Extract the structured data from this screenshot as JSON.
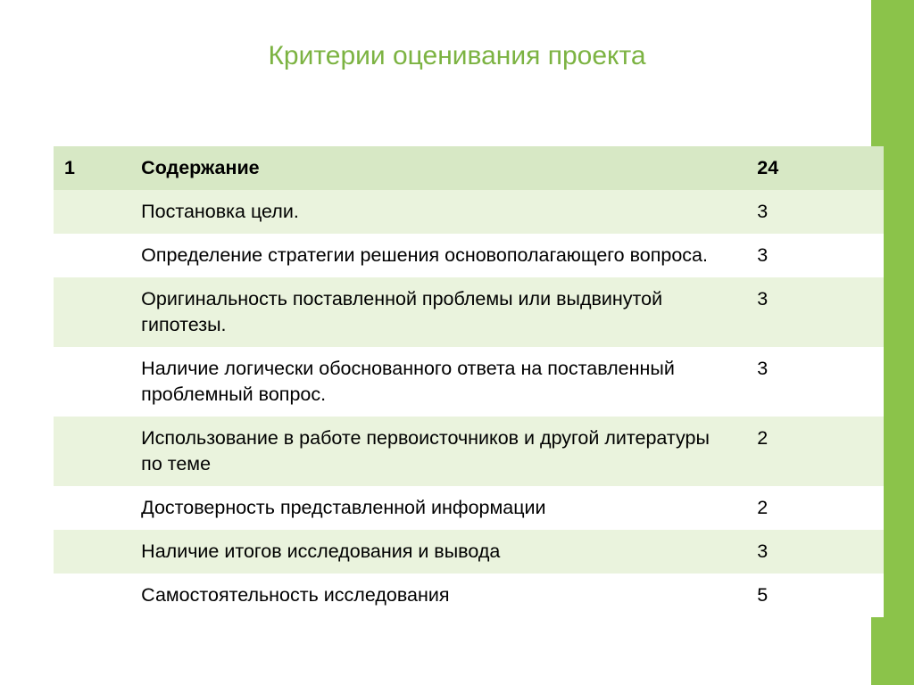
{
  "title": "Критерии оценивания проекта",
  "colors": {
    "accent": "#8bc34a",
    "title_text": "#7cb342",
    "row_header_bg": "#d7e8c5",
    "row_alt_bg": "#eaf3dd",
    "row_plain_bg": "#ffffff",
    "cell_text": "#000000"
  },
  "table": {
    "header": {
      "num": "1",
      "label": "Содержание",
      "value": "24"
    },
    "rows": [
      {
        "label": "Постановка цели.",
        "value": "3"
      },
      {
        "label": "Определение стратегии решения основополагающего вопроса.",
        "value": "3"
      },
      {
        "label": "Оригинальность поставленной проблемы или выдвинутой гипотезы.",
        "value": "3"
      },
      {
        "label": "Наличие логически обоснованного ответа на поставленный проблемный вопрос.",
        "value": "3"
      },
      {
        "label": "Использование в работе первоисточников и другой литературы по теме",
        "value": "2"
      },
      {
        "label": "Достоверность представленной информации",
        "value": "2"
      },
      {
        "label": "Наличие итогов исследования и вывода",
        "value": "3"
      },
      {
        "label": "Самостоятельность исследования",
        "value": "5"
      }
    ]
  }
}
